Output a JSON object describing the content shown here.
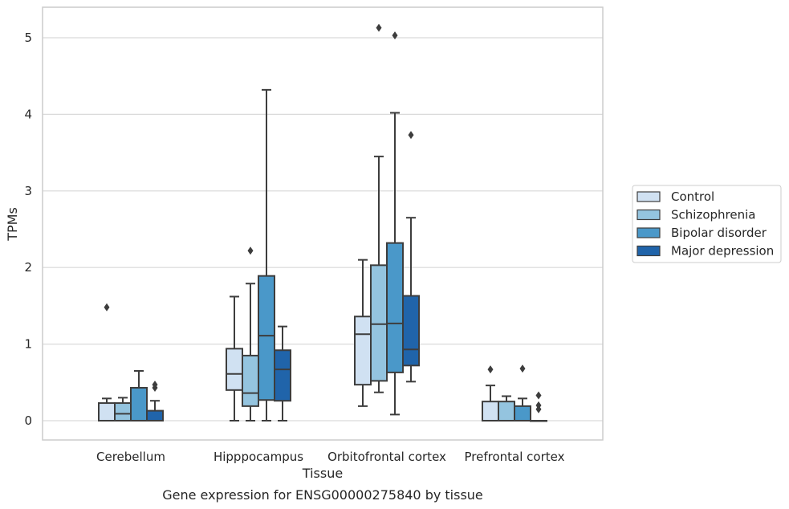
{
  "chart_data": {
    "type": "box",
    "xlabel": "Tissue",
    "ylabel": "TPMs",
    "caption": "Gene expression for ENSG00000275840 by tissue",
    "ylim": [
      -0.25,
      5.4
    ],
    "yticks": [
      0,
      1,
      2,
      3,
      4,
      5
    ],
    "grid": true,
    "legend_position": "right",
    "categories": [
      "Cerebellum",
      "Hipppocampus",
      "Orbitofrontal cortex",
      "Prefrontal cortex"
    ],
    "series": [
      {
        "name": "Control",
        "color": "#d0e1f2",
        "boxes": [
          {
            "whisker_low": 0,
            "q1": 0,
            "median": 0,
            "q3": 0.23,
            "whisker_high": 0.29,
            "outliers": [
              1.48
            ]
          },
          {
            "whisker_low": 0,
            "q1": 0.4,
            "median": 0.61,
            "q3": 0.94,
            "whisker_high": 1.62,
            "outliers": []
          },
          {
            "whisker_low": 0.19,
            "q1": 0.47,
            "median": 1.13,
            "q3": 1.36,
            "whisker_high": 2.1,
            "outliers": []
          },
          {
            "whisker_low": 0,
            "q1": 0,
            "median": 0,
            "q3": 0.25,
            "whisker_high": 0.46,
            "outliers": [
              0.67
            ]
          }
        ]
      },
      {
        "name": "Schizophrenia",
        "color": "#94c4df",
        "boxes": [
          {
            "whisker_low": 0,
            "q1": 0,
            "median": 0.09,
            "q3": 0.23,
            "whisker_high": 0.3,
            "outliers": []
          },
          {
            "whisker_low": 0,
            "q1": 0.19,
            "median": 0.36,
            "q3": 0.85,
            "whisker_high": 1.79,
            "outliers": [
              2.22
            ]
          },
          {
            "whisker_low": 0.37,
            "q1": 0.52,
            "median": 1.26,
            "q3": 2.03,
            "whisker_high": 3.45,
            "outliers": [
              5.13
            ]
          },
          {
            "whisker_low": 0,
            "q1": 0,
            "median": 0,
            "q3": 0.25,
            "whisker_high": 0.32,
            "outliers": []
          }
        ]
      },
      {
        "name": "Bipolar disorder",
        "color": "#4a98c9",
        "boxes": [
          {
            "whisker_low": 0,
            "q1": 0,
            "median": 0,
            "q3": 0.43,
            "whisker_high": 0.65,
            "outliers": []
          },
          {
            "whisker_low": 0,
            "q1": 0.27,
            "median": 1.11,
            "q3": 1.89,
            "whisker_high": 4.32,
            "outliers": []
          },
          {
            "whisker_low": 0.08,
            "q1": 0.63,
            "median": 1.27,
            "q3": 2.32,
            "whisker_high": 4.02,
            "outliers": [
              5.03
            ]
          },
          {
            "whisker_low": 0,
            "q1": 0,
            "median": 0,
            "q3": 0.19,
            "whisker_high": 0.29,
            "outliers": [
              0.68
            ]
          }
        ]
      },
      {
        "name": "Major depression",
        "color": "#2064aa",
        "boxes": [
          {
            "whisker_low": 0,
            "q1": 0,
            "median": 0,
            "q3": 0.13,
            "whisker_high": 0.26,
            "outliers": [
              0.43,
              0.47
            ]
          },
          {
            "whisker_low": 0,
            "q1": 0.26,
            "median": 0.67,
            "q3": 0.92,
            "whisker_high": 1.23,
            "outliers": []
          },
          {
            "whisker_low": 0.51,
            "q1": 0.72,
            "median": 0.93,
            "q3": 1.63,
            "whisker_high": 2.65,
            "outliers": [
              3.73
            ]
          },
          {
            "whisker_low": 0,
            "q1": 0,
            "median": 0,
            "q3": 0,
            "whisker_high": 0,
            "outliers": [
              0.15,
              0.2,
              0.33
            ]
          }
        ]
      }
    ]
  }
}
